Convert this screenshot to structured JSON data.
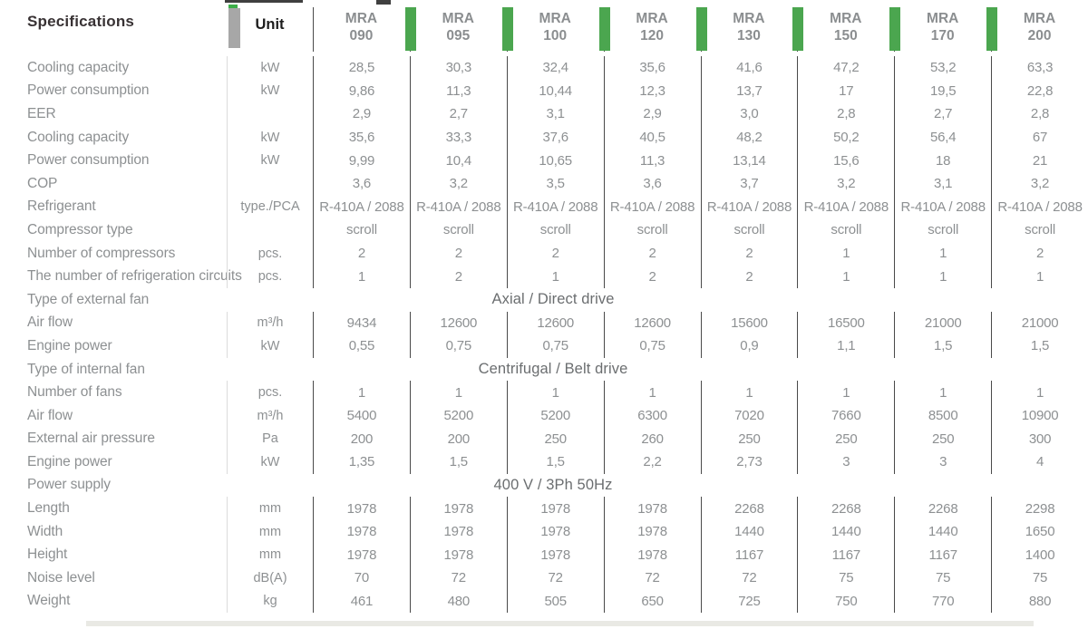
{
  "header": {
    "specifications_label": "Specifications",
    "unit_label": "Unit",
    "brand": "MRA",
    "models": [
      "090",
      "095",
      "100",
      "120",
      "130",
      "150",
      "170",
      "200"
    ]
  },
  "colors": {
    "accent_green": "#4ba64f",
    "text_grey": "#8d9092",
    "header_dark": "#383234",
    "separator_dark": "#4a4a4a",
    "separator_light": "#dcdcdc"
  },
  "rows": [
    {
      "label": "Cooling capacity",
      "unit": "kW",
      "values": [
        "28,5",
        "30,3",
        "32,4",
        "35,6",
        "41,6",
        "47,2",
        "53,2",
        "63,3"
      ]
    },
    {
      "label": "Power consumption",
      "unit": "kW",
      "values": [
        "9,86",
        "11,3",
        "10,44",
        "12,3",
        "13,7",
        "17",
        "19,5",
        "22,8"
      ]
    },
    {
      "label": "EER",
      "unit": "",
      "values": [
        "2,9",
        "2,7",
        "3,1",
        "2,9",
        "3,0",
        "2,8",
        "2,7",
        "2,8"
      ]
    },
    {
      "label": "Cooling capacity",
      "unit": "kW",
      "values": [
        "35,6",
        "33,3",
        "37,6",
        "40,5",
        "48,2",
        "50,2",
        "56,4",
        "67"
      ]
    },
    {
      "label": "Power consumption",
      "unit": "kW",
      "values": [
        "9,99",
        "10,4",
        "10,65",
        "11,3",
        "13,14",
        "15,6",
        "18",
        "21"
      ]
    },
    {
      "label": "COP",
      "unit": "",
      "values": [
        "3,6",
        "3,2",
        "3,5",
        "3,6",
        "3,7",
        "3,2",
        "3,1",
        "3,2"
      ]
    },
    {
      "label": "Refrigerant",
      "unit": "type./PCA",
      "values": [
        "R-410A / 2088",
        "R-410A / 2088",
        "R-410A / 2088",
        "R-410A / 2088",
        "R-410A / 2088",
        "R-410A / 2088",
        "R-410A / 2088",
        "R-410A / 2088"
      ]
    },
    {
      "label": "Compressor type",
      "unit": "",
      "values": [
        "scroll",
        "scroll",
        "scroll",
        "scroll",
        "scroll",
        "scroll",
        "scroll",
        "scroll"
      ]
    },
    {
      "label": "Number of compressors",
      "unit": "pcs.",
      "values": [
        "2",
        "2",
        "2",
        "2",
        "2",
        "1",
        "1",
        "2"
      ]
    },
    {
      "label": "The number of refrigeration circuits",
      "unit": "pcs.",
      "values": [
        "1",
        "2",
        "1",
        "2",
        "2",
        "1",
        "1",
        "1"
      ]
    },
    {
      "label": "Type of external fan",
      "unit": "",
      "span": "Axial / Direct drive"
    },
    {
      "label": "Air flow",
      "unit": "m³/h",
      "values": [
        "9434",
        "12600",
        "12600",
        "12600",
        "15600",
        "16500",
        "21000",
        "21000"
      ]
    },
    {
      "label": "Engine power",
      "unit": "kW",
      "values": [
        "0,55",
        "0,75",
        "0,75",
        "0,75",
        "0,9",
        "1,1",
        "1,5",
        "1,5"
      ]
    },
    {
      "label": "Type of internal fan",
      "unit": "",
      "span": "Centrifugal / Belt drive"
    },
    {
      "label": "Number of fans",
      "unit": "pcs.",
      "values": [
        "1",
        "1",
        "1",
        "1",
        "1",
        "1",
        "1",
        "1"
      ]
    },
    {
      "label": "Air flow",
      "unit": "m³/h",
      "values": [
        "5400",
        "5200",
        "5200",
        "6300",
        "7020",
        "7660",
        "8500",
        "10900"
      ]
    },
    {
      "label": "External air pressure",
      "unit": "Pa",
      "values": [
        "200",
        "200",
        "250",
        "260",
        "250",
        "250",
        "250",
        "300"
      ]
    },
    {
      "label": "Engine power",
      "unit": "kW",
      "values": [
        "1,35",
        "1,5",
        "1,5",
        "2,2",
        "2,73",
        "3",
        "3",
        "4"
      ]
    },
    {
      "label": "Power supply",
      "unit": "",
      "span": "400 V / 3Ph 50Hz"
    },
    {
      "label": "Length",
      "unit": "mm",
      "values": [
        "1978",
        "1978",
        "1978",
        "1978",
        "2268",
        "2268",
        "2268",
        "2298"
      ]
    },
    {
      "label": "Width",
      "unit": "mm",
      "values": [
        "1978",
        "1978",
        "1978",
        "1978",
        "1440",
        "1440",
        "1440",
        "1650"
      ]
    },
    {
      "label": "Height",
      "unit": "mm",
      "values": [
        "1978",
        "1978",
        "1978",
        "1978",
        "1167",
        "1167",
        "1167",
        "1400"
      ]
    },
    {
      "label": "Noise level",
      "unit": "dB(A)",
      "values": [
        "70",
        "72",
        "72",
        "72",
        "72",
        "75",
        "75",
        "75"
      ]
    },
    {
      "label": "Weight",
      "unit": "kg",
      "values": [
        "461",
        "480",
        "505",
        "650",
        "725",
        "750",
        "770",
        "880"
      ]
    }
  ]
}
